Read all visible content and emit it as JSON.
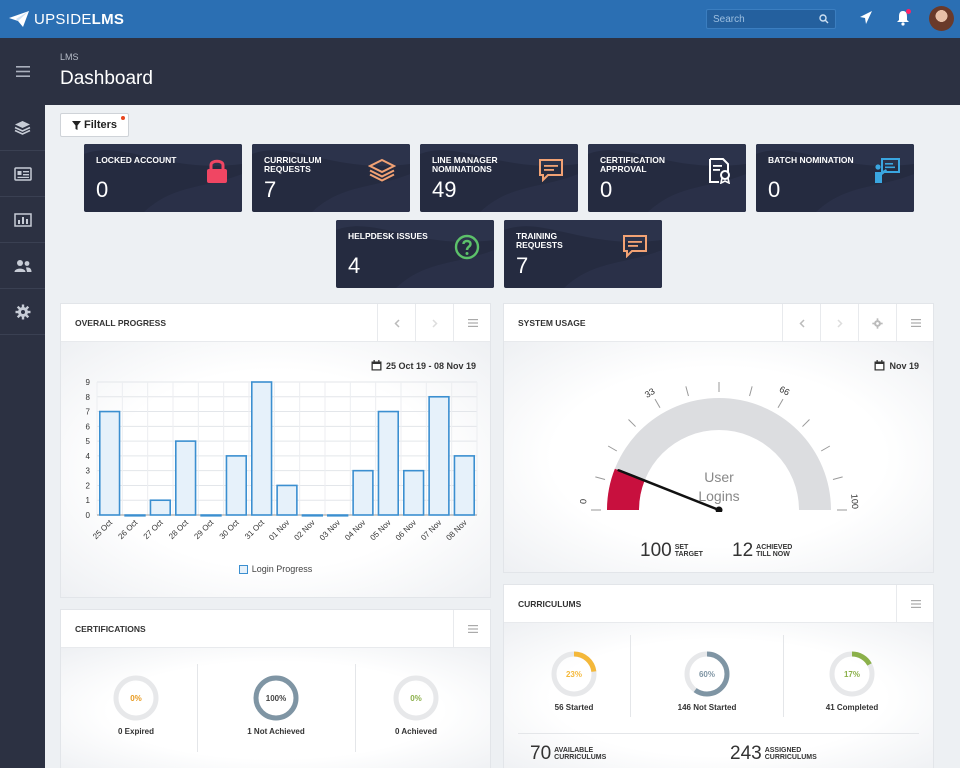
{
  "app": {
    "logo_light": "UPSIDE",
    "logo_bold": "LMS"
  },
  "search": {
    "placeholder": "Search"
  },
  "header": {
    "breadcrumb": "LMS",
    "title": "Dashboard"
  },
  "sidebar": {
    "items": [
      "layers-icon",
      "id-card-icon",
      "bar-chart-icon",
      "users-icon",
      "gear-icon"
    ]
  },
  "filters": {
    "label": "Filters"
  },
  "cards": [
    {
      "label": "Locked Account",
      "value": "0",
      "icon": "lock-icon",
      "color": "#f04663"
    },
    {
      "label": "Curriculum Requests",
      "value": "7",
      "icon": "layers-icon",
      "color": "#f2a274"
    },
    {
      "label": "Line Manager Nominations",
      "value": "49",
      "icon": "chat-icon",
      "color": "#f2a274"
    },
    {
      "label": "Certification Approval",
      "value": "0",
      "icon": "certificate-icon",
      "color": "#ffffff"
    },
    {
      "label": "Batch Nomination",
      "value": "0",
      "icon": "presenter-icon",
      "color": "#3aa6e0"
    },
    {
      "label": "Helpdesk Issues",
      "value": "4",
      "icon": "question-icon",
      "color": "#5cc16a"
    },
    {
      "label": "Training Requests",
      "value": "7",
      "icon": "chat-icon",
      "color": "#f2a274"
    }
  ],
  "overall_progress": {
    "title": "Overall Progress",
    "date_range": "25 Oct 19 - 08 Nov 19"
  },
  "chart_data": {
    "type": "bar",
    "categories": [
      "25 Oct",
      "26 Oct",
      "27 Oct",
      "28 Oct",
      "29 Oct",
      "30 Oct",
      "31 Oct",
      "01 Nov",
      "02 Nov",
      "03 Nov",
      "04 Nov",
      "05 Nov",
      "06 Nov",
      "07 Nov",
      "08 Nov"
    ],
    "series": [
      {
        "name": "Login Progress",
        "values": [
          7,
          0,
          1,
          5,
          0,
          4,
          9,
          2,
          0,
          0,
          3,
          7,
          3,
          8,
          4
        ]
      }
    ],
    "y_ticks": [
      "0",
      "1",
      "2",
      "3",
      "4",
      "5",
      "6",
      "7",
      "8",
      "9"
    ],
    "ylim": [
      0,
      9
    ],
    "grid": true,
    "legend": "bottom",
    "color": "#3b8fd0"
  },
  "system_usage": {
    "title": "System Usage",
    "date": "Nov 19",
    "gauge": {
      "min_label": "0",
      "max_label": "100",
      "mark1": "33",
      "mark2": "66",
      "label_line1": "User",
      "label_line2": "Logins",
      "value": 12,
      "max": 100
    },
    "set_target": {
      "value": "100",
      "label1": "SET",
      "label2": "TARGET"
    },
    "achieved": {
      "value": "12",
      "label1": "ACHIEVED",
      "label2": "TILL NOW"
    }
  },
  "certifications": {
    "title": "Certifications",
    "items": [
      {
        "pct": "0%",
        "label": "0 Expired",
        "fraction": 0,
        "color": "#e89a1e"
      },
      {
        "pct": "100%",
        "label": "1 Not Achieved",
        "fraction": 1,
        "color": "#7f95a4"
      },
      {
        "pct": "0%",
        "label": "0 Achieved",
        "fraction": 0,
        "color": "#8bb04a"
      }
    ]
  },
  "curriculums": {
    "title": "Curriculums",
    "items": [
      {
        "pct": "23%",
        "label": "56 Started",
        "fraction": 0.23,
        "color": "#f4b83a"
      },
      {
        "pct": "60%",
        "label": "146 Not Started",
        "fraction": 0.6,
        "color": "#7f95a4"
      },
      {
        "pct": "17%",
        "label": "41 Completed",
        "fraction": 0.17,
        "color": "#8bb04a"
      }
    ],
    "available": {
      "value": "70",
      "label1": "AVAILABLE",
      "label2": "CURRICULUMS"
    },
    "assigned": {
      "value": "243",
      "label1": "ASSIGNED",
      "label2": "CURRICULUMS"
    }
  }
}
